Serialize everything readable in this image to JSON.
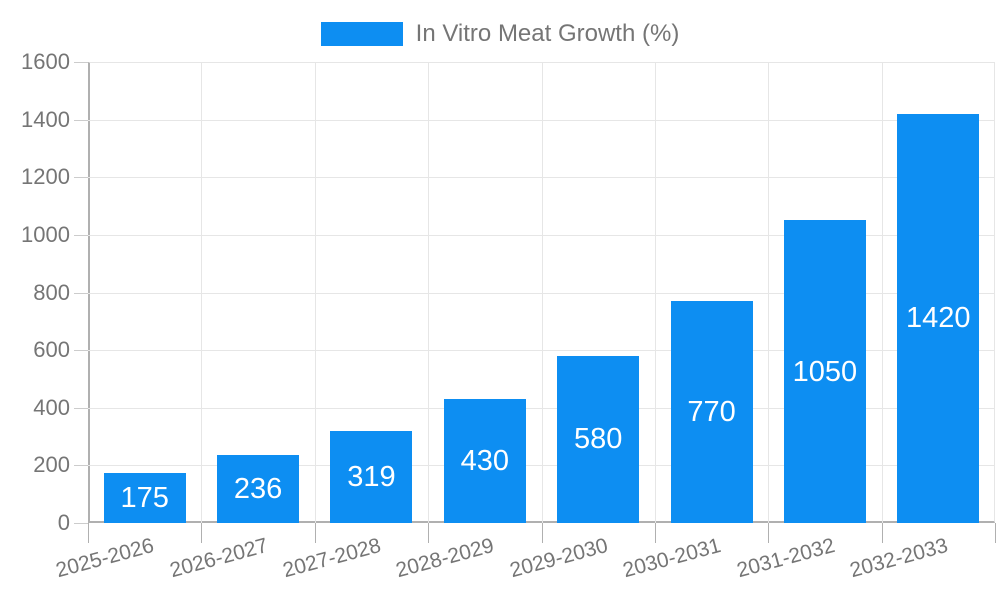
{
  "legend": {
    "label": "In Vitro Meat Growth (%)"
  },
  "chart_data": {
    "type": "bar",
    "title": "In Vitro Meat Growth (%)",
    "series": [
      {
        "name": "In Vitro Meat Growth (%)",
        "values": [
          175,
          236,
          319,
          430,
          580,
          770,
          1050,
          1420
        ]
      }
    ],
    "categories": [
      "2025-2026",
      "2026-2027",
      "2027-2028",
      "2028-2029",
      "2029-2030",
      "2030-2031",
      "2031-2032",
      "2032-2033"
    ],
    "xlabel": "",
    "ylabel": "",
    "ylim": [
      0,
      1600
    ],
    "ytick_step": 200,
    "ytick_labels": [
      "0",
      "200",
      "400",
      "600",
      "800",
      "1000",
      "1200",
      "1400",
      "1600"
    ],
    "grid": true,
    "legend_position": "top-center",
    "bar_value_labels_shown": true,
    "x_label_rotation_deg": -15
  },
  "colors": {
    "bar": "#0d8ef2",
    "grid": "#e6e6e6",
    "axis": "#b0b0b0",
    "y_tick": "#cccccc",
    "x_tick": "#b0b0b0",
    "label_text": "#757575",
    "bar_value_text": "#ffffff",
    "background": "#ffffff"
  }
}
